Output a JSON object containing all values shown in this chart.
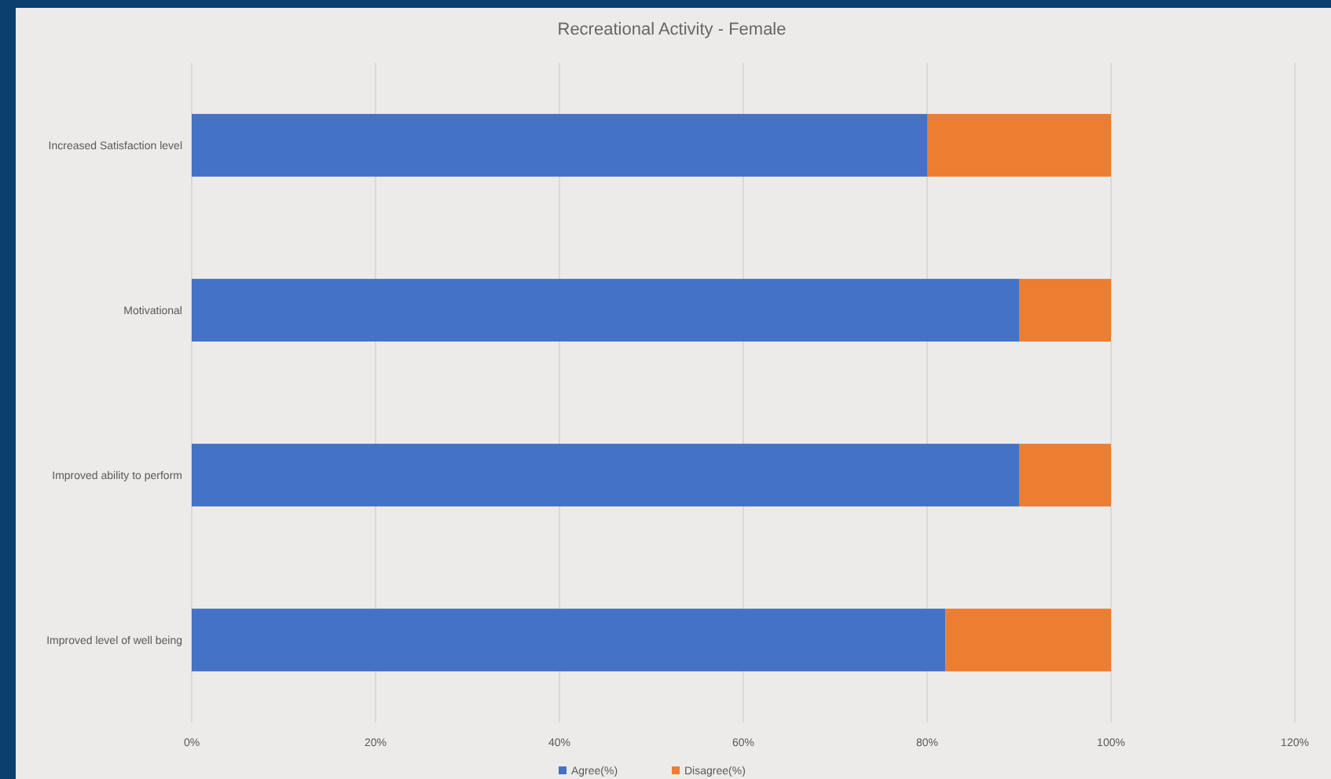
{
  "chart_data": {
    "type": "bar",
    "orientation": "horizontal",
    "stacked": true,
    "title": "Recreational Activity - Female",
    "categories": [
      "Increased Satisfaction level",
      "Motivational",
      "Improved ability to perform",
      "Improved level of well being"
    ],
    "series": [
      {
        "name": "Agree(%)",
        "color": "#4472c4",
        "values": [
          80,
          90,
          90,
          82
        ]
      },
      {
        "name": "Disagree(%)",
        "color": "#ed7d31",
        "values": [
          20,
          10,
          10,
          18
        ]
      }
    ],
    "xlim": [
      0,
      120
    ],
    "xticks": [
      {
        "value": 0,
        "label": "0%"
      },
      {
        "value": 20,
        "label": "20%"
      },
      {
        "value": 40,
        "label": "40%"
      },
      {
        "value": 60,
        "label": "60%"
      },
      {
        "value": 80,
        "label": "80%"
      },
      {
        "value": 100,
        "label": "100%"
      },
      {
        "value": 120,
        "label": "120%"
      }
    ],
    "grid": "x",
    "legend": "bottom"
  }
}
